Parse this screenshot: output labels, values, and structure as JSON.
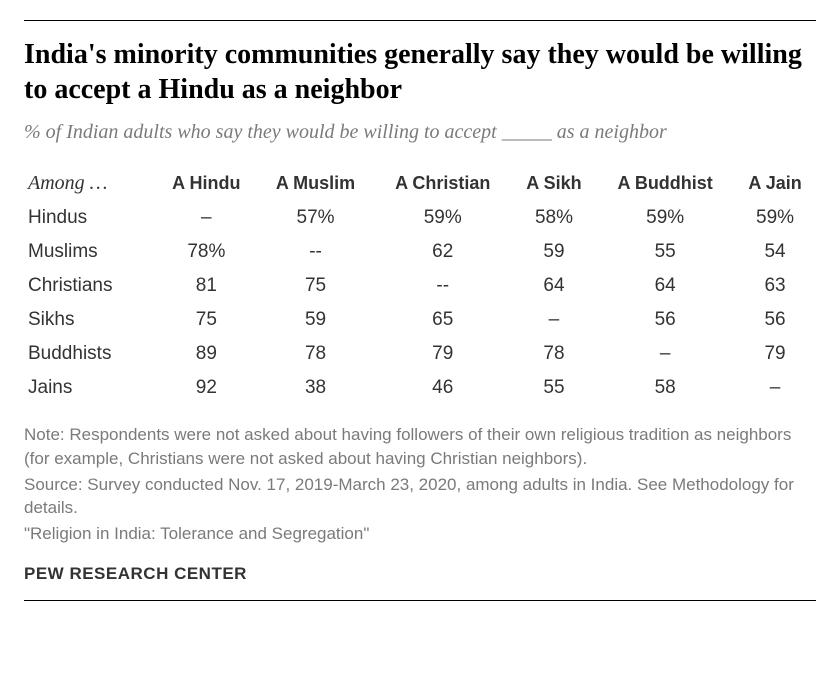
{
  "title": "India's minority communities generally say they would be willing to accept a Hindu as a neighbor",
  "subtitle": "% of Indian adults who say they would be willing to accept _____ as a neighbor",
  "table": {
    "row_header_label": "Among …",
    "columns": [
      "A Hindu",
      "A Muslim",
      "A Christian",
      "A Sikh",
      "A Buddhist",
      "A Jain"
    ],
    "rows": [
      {
        "label": "Hindus",
        "cells": [
          "–",
          "57%",
          "59%",
          "58%",
          "59%",
          "59%"
        ]
      },
      {
        "label": "Muslims",
        "cells": [
          "78%",
          "--",
          "62",
          "59",
          "55",
          "54"
        ]
      },
      {
        "label": "Christians",
        "cells": [
          "81",
          "75",
          "--",
          "64",
          "64",
          "63"
        ]
      },
      {
        "label": "Sikhs",
        "cells": [
          "75",
          "59",
          "65",
          "–",
          "56",
          "56"
        ]
      },
      {
        "label": "Buddhists",
        "cells": [
          "89",
          "78",
          "79",
          "78",
          "–",
          "79"
        ]
      },
      {
        "label": "Jains",
        "cells": [
          "92",
          "38",
          "46",
          "55",
          "58",
          "–"
        ]
      }
    ]
  },
  "notes": {
    "line1": "Note: Respondents were not asked about having followers of their own religious tradition as neighbors (for example, Christians were not asked about having Christian neighbors).",
    "line2": "Source: Survey conducted Nov. 17, 2019-March 23, 2020, among adults in India. See Methodology for details.",
    "line3": "\"Religion in India: Tolerance and Segregation\""
  },
  "attribution": "PEW RESEARCH CENTER"
}
